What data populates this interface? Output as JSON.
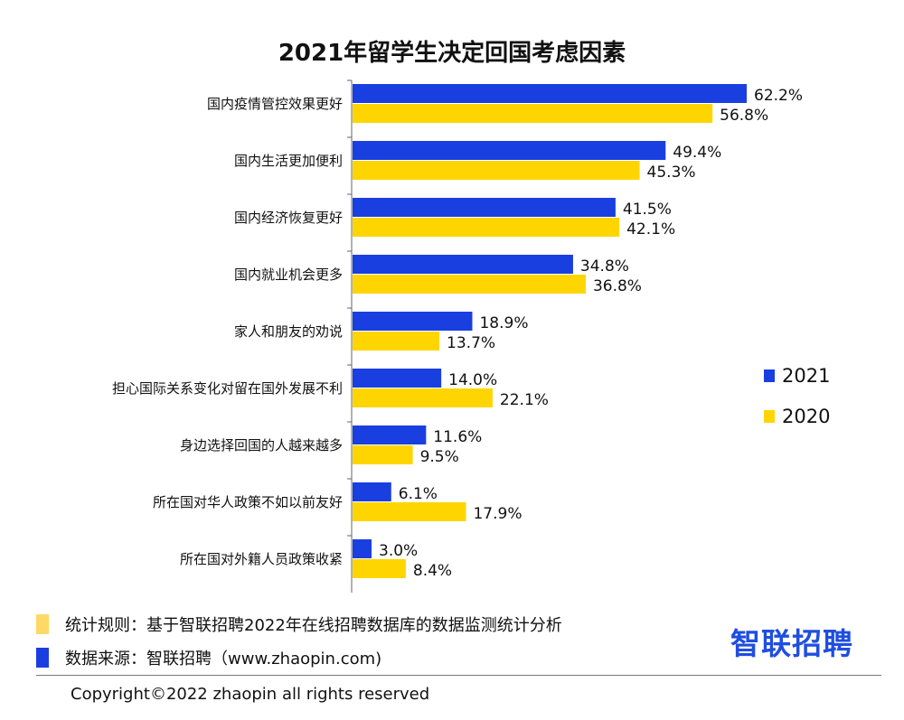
{
  "chart_data": {
    "type": "bar",
    "orientation": "horizontal",
    "title": "2021年留学生决定回国考虑因素",
    "categories": [
      "国内疫情管控效果更好",
      "国内生活更加便利",
      "国内经济恢复更好",
      "国内就业机会更多",
      "家人和朋友的劝说",
      "担心国际关系变化对留在国外发展不利",
      "身边选择回国的人越来越多",
      "所在国对华人政策不如以前友好",
      "所在国对外籍人员政策收紧"
    ],
    "series": [
      {
        "name": "2021",
        "color": "#1a3fe0",
        "values": [
          62.2,
          49.4,
          41.5,
          34.8,
          18.9,
          14.0,
          11.6,
          6.1,
          3.0
        ],
        "labels": [
          "62.2%",
          "49.4%",
          "41.5%",
          "34.8%",
          "18.9%",
          "14.0%",
          "11.6%",
          "6.1%",
          "3.0%"
        ]
      },
      {
        "name": "2020",
        "color": "#ffd500",
        "values": [
          56.8,
          45.3,
          42.1,
          36.8,
          13.7,
          22.1,
          9.5,
          17.9,
          8.4
        ],
        "labels": [
          "56.8%",
          "45.3%",
          "42.1%",
          "36.8%",
          "13.7%",
          "22.1%",
          "9.5%",
          "17.9%",
          "8.4%"
        ]
      }
    ],
    "xlim": [
      0,
      70
    ],
    "grid": false,
    "legend_position": "right"
  },
  "footer": {
    "rule_text": "统计规则：基于智联招聘2022年在线招聘数据库的数据监测统计分析",
    "rule_color": "#ffd966",
    "source_text": "数据来源：智联招聘（www.zhaopin.com)",
    "source_color": "#1a3fe0",
    "logo_text": "智联招聘",
    "copyright": "Copyright©2022 zhaopin all rights reserved"
  }
}
